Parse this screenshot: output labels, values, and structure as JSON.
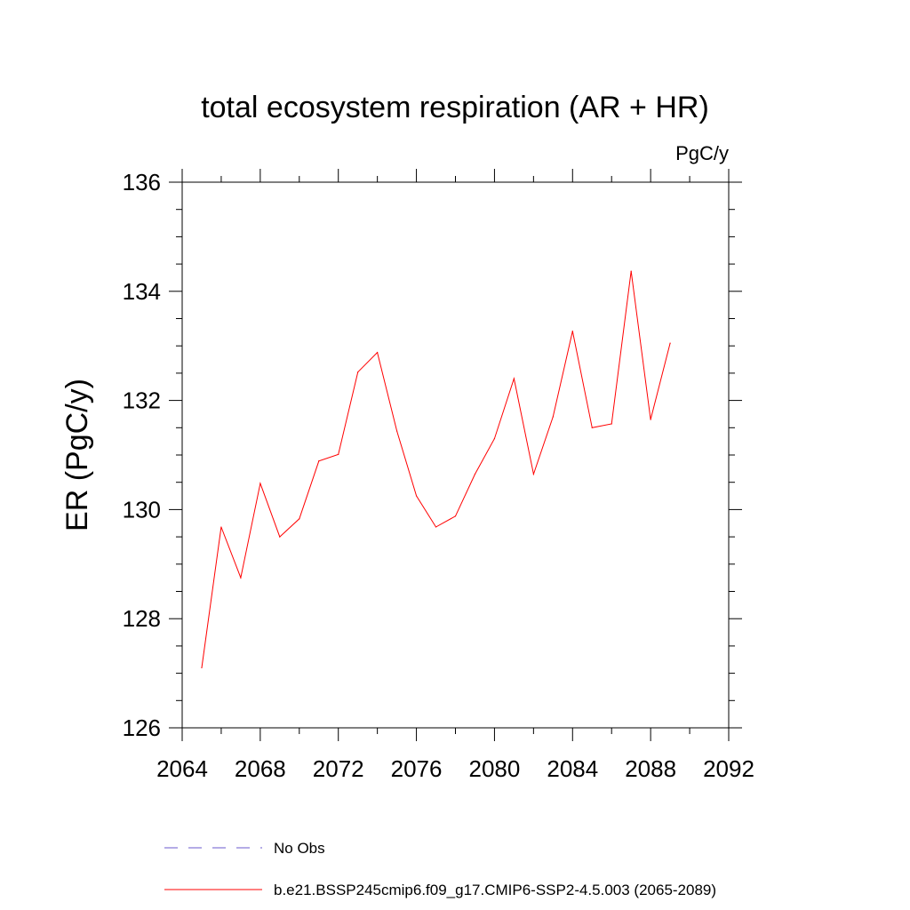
{
  "chart_data": {
    "type": "line",
    "title": "total ecosystem respiration (AR + HR)",
    "units": "PgC/y",
    "ylabel": "ER  (PgC/y)",
    "xlabel": "",
    "xlim": [
      2064,
      2092
    ],
    "ylim": [
      126,
      136
    ],
    "xticks": [
      2064,
      2068,
      2072,
      2076,
      2080,
      2084,
      2088,
      2092
    ],
    "yticks": [
      126,
      128,
      130,
      132,
      134,
      136
    ],
    "xtick_labels": [
      "2064",
      "2068",
      "2072",
      "2076",
      "2080",
      "2084",
      "2088",
      "2092"
    ],
    "ytick_labels": [
      "126",
      "128",
      "130",
      "132",
      "134",
      "136"
    ],
    "grid": false,
    "legend_position": "bottom",
    "series": [
      {
        "name": "No Obs",
        "color": "#6a5acd",
        "style": "dashed",
        "x": [],
        "y": []
      },
      {
        "name": "b.e21.BSSP245cmip6.f09_g17.CMIP6-SSP2-4.5.003 (2065-2089)",
        "color": "#ff0000",
        "style": "solid",
        "x": [
          2065,
          2066,
          2067,
          2068,
          2069,
          2070,
          2071,
          2072,
          2073,
          2074,
          2075,
          2076,
          2077,
          2078,
          2079,
          2080,
          2081,
          2082,
          2083,
          2084,
          2085,
          2086,
          2087,
          2088,
          2089
        ],
        "y": [
          127.1,
          129.68,
          128.75,
          130.48,
          129.5,
          129.83,
          130.89,
          131.01,
          132.52,
          132.88,
          131.44,
          130.25,
          129.68,
          129.88,
          130.65,
          131.3,
          132.4,
          130.65,
          131.7,
          133.27,
          131.5,
          131.57,
          134.37,
          131.65,
          133.05
        ]
      }
    ]
  }
}
